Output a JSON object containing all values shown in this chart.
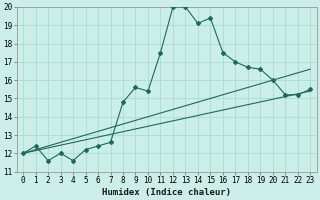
{
  "xlabel": "Humidex (Indice chaleur)",
  "bg_color": "#cceee8",
  "grid_color": "#aaddcc",
  "line_color": "#1a6b5a",
  "xlim": [
    -0.5,
    23.5
  ],
  "ylim": [
    11,
    20
  ],
  "xticks": [
    0,
    1,
    2,
    3,
    4,
    5,
    6,
    7,
    8,
    9,
    10,
    11,
    12,
    13,
    14,
    15,
    16,
    17,
    18,
    19,
    20,
    21,
    22,
    23
  ],
  "yticks": [
    11,
    12,
    13,
    14,
    15,
    16,
    17,
    18,
    19,
    20
  ],
  "series": [
    {
      "x": [
        0,
        1,
        2,
        3,
        4,
        5,
        6,
        7,
        8,
        9,
        10,
        11,
        12,
        13,
        14,
        15,
        16,
        17,
        18,
        19,
        20,
        21,
        22,
        23
      ],
      "y": [
        12.0,
        12.4,
        11.6,
        12.0,
        11.6,
        12.2,
        12.4,
        12.6,
        14.8,
        15.6,
        15.4,
        17.5,
        20.0,
        20.0,
        19.1,
        19.4,
        17.5,
        17.0,
        16.7,
        16.6,
        16.0,
        15.2,
        15.2,
        15.5
      ],
      "marker": true
    },
    {
      "x": [
        0,
        23
      ],
      "y": [
        12.0,
        15.4
      ],
      "marker": false
    },
    {
      "x": [
        0,
        23
      ],
      "y": [
        12.0,
        16.6
      ],
      "marker": false
    }
  ]
}
